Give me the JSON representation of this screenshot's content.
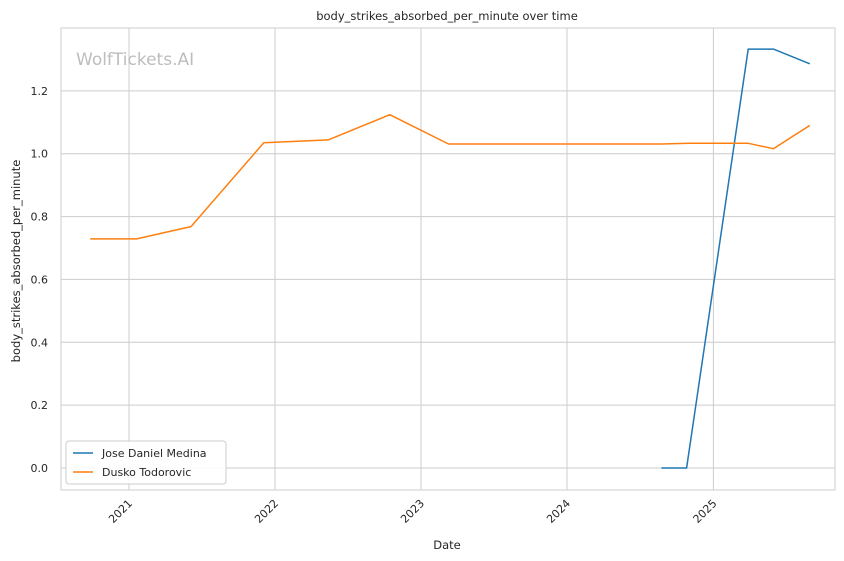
{
  "chart_data": {
    "type": "line",
    "title": "body_strikes_absorbed_per_minute over time",
    "xlabel": "Date",
    "ylabel": "body_strikes_absorbed_per_minute",
    "watermark": "WolfTickets.AI",
    "x_ticks": [
      "2021",
      "2022",
      "2023",
      "2024",
      "2025"
    ],
    "y_ticks": [
      "0.0",
      "0.2",
      "0.4",
      "0.6",
      "0.8",
      "1.0",
      "1.2"
    ],
    "xlim": [
      "2020-07-15",
      "2025-11-01"
    ],
    "ylim": [
      -0.07,
      1.4
    ],
    "grid": true,
    "legend_position": "lower-left",
    "series": [
      {
        "name": "Jose Daniel Medina",
        "color": "#1f77b4",
        "points": [
          [
            "2024-08-24",
            0.0
          ],
          [
            "2024-10-26",
            0.0
          ],
          [
            "2025-03-29",
            1.333
          ],
          [
            "2025-05-31",
            1.333
          ],
          [
            "2025-08-30",
            1.286
          ]
        ]
      },
      {
        "name": "Dusko Todorovic",
        "color": "#ff7f0e",
        "points": [
          [
            "2020-09-26",
            0.729
          ],
          [
            "2021-01-20",
            0.729
          ],
          [
            "2021-06-05",
            0.768
          ],
          [
            "2021-12-04",
            1.035
          ],
          [
            "2022-05-14",
            1.044
          ],
          [
            "2022-10-15",
            1.124
          ],
          [
            "2023-03-11",
            1.031
          ],
          [
            "2024-08-24",
            1.031
          ],
          [
            "2024-11-02",
            1.033
          ],
          [
            "2025-03-29",
            1.033
          ],
          [
            "2025-05-31",
            1.016
          ],
          [
            "2025-08-30",
            1.09
          ]
        ]
      }
    ]
  }
}
